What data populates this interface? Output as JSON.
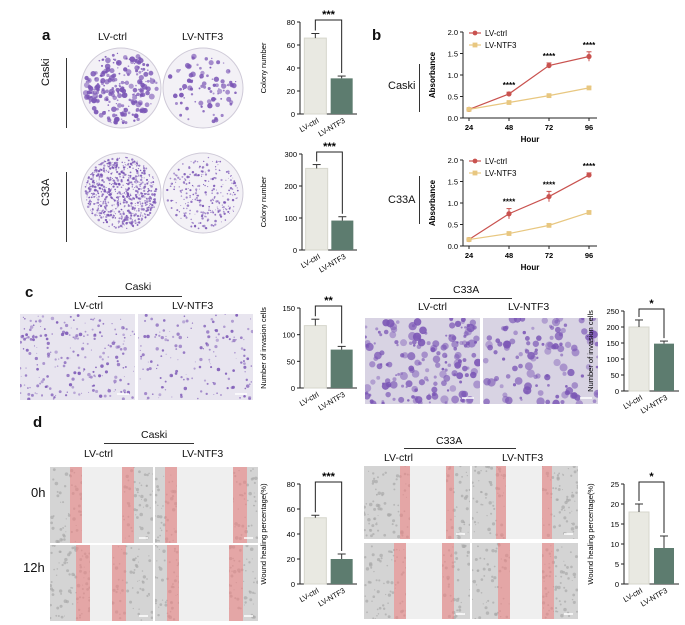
{
  "colors": {
    "ctrl_bar": "#e9e9e2",
    "ntf3_bar": "#5d7c6f",
    "ctrl_line": "#c9524f",
    "ntf3_line": "#e8c780",
    "crystal": "#7a55b5",
    "scratch": "#f07f7f"
  },
  "panels": {
    "a": "a",
    "b": "b",
    "c": "c",
    "d": "d"
  },
  "labels": {
    "lv_ctrl": "LV-ctrl",
    "lv_ntf3": "LV-NTF3",
    "caski": "Caski",
    "c33a": "C33A",
    "time_0h": "0h",
    "time_12h": "12h"
  },
  "chart_data": [
    {
      "id": "a-caski",
      "type": "bar",
      "categories": [
        "LV-ctrl",
        "LV-NTF3"
      ],
      "values": [
        66,
        31
      ],
      "errors": [
        4,
        2
      ],
      "ylabel": "Colony number",
      "ylim": [
        0,
        80
      ],
      "yticks": [
        0,
        20,
        40,
        60,
        80
      ],
      "significance": "***"
    },
    {
      "id": "a-c33a",
      "type": "bar",
      "categories": [
        "LV-ctrl",
        "LV-NTF3"
      ],
      "values": [
        255,
        92
      ],
      "errors": [
        12,
        12
      ],
      "ylabel": "Colony number",
      "ylim": [
        0,
        300
      ],
      "yticks": [
        0,
        100,
        200,
        300
      ],
      "significance": "***"
    },
    {
      "id": "b-caski",
      "type": "line",
      "x": [
        24,
        48,
        72,
        96
      ],
      "series": [
        {
          "name": "LV-ctrl",
          "values": [
            0.2,
            0.56,
            1.22,
            1.43
          ],
          "errors": [
            0.02,
            0.04,
            0.06,
            0.11
          ]
        },
        {
          "name": "LV-NTF3",
          "values": [
            0.2,
            0.36,
            0.52,
            0.7
          ],
          "errors": [
            0.01,
            0.02,
            0.03,
            0.03
          ]
        }
      ],
      "annotations": [
        "****",
        "****",
        "****"
      ],
      "xlabel": "Hour",
      "ylabel": "Absorbance",
      "ylim": [
        0,
        2.0
      ],
      "yticks": [
        0.0,
        0.5,
        1.0,
        1.5,
        2.0
      ]
    },
    {
      "id": "b-c33a",
      "type": "line",
      "x": [
        24,
        48,
        72,
        96
      ],
      "series": [
        {
          "name": "LV-ctrl",
          "values": [
            0.15,
            0.75,
            1.15,
            1.65
          ],
          "errors": [
            0.02,
            0.12,
            0.12,
            0.05
          ]
        },
        {
          "name": "LV-NTF3",
          "values": [
            0.15,
            0.29,
            0.48,
            0.78
          ],
          "errors": [
            0.01,
            0.03,
            0.04,
            0.03
          ]
        }
      ],
      "annotations": [
        "****",
        "****",
        "****"
      ],
      "xlabel": "Hour",
      "ylabel": "Absorbance",
      "ylim": [
        0,
        2.0
      ],
      "yticks": [
        0.0,
        0.5,
        1.0,
        1.5,
        2.0
      ]
    },
    {
      "id": "c-caski",
      "type": "bar",
      "categories": [
        "LV-ctrl",
        "LV-NTF3"
      ],
      "values": [
        117,
        72
      ],
      "errors": [
        12,
        6
      ],
      "ylabel": "Number of invasion cells",
      "ylim": [
        0,
        150
      ],
      "yticks": [
        0,
        50,
        100,
        150
      ],
      "significance": "**"
    },
    {
      "id": "c-c33a",
      "type": "bar",
      "categories": [
        "LV-ctrl",
        "LV-NTF3"
      ],
      "values": [
        200,
        148
      ],
      "errors": [
        22,
        8
      ],
      "ylabel": "Number of invasion cells",
      "ylim": [
        0,
        250
      ],
      "yticks": [
        0,
        50,
        100,
        150,
        200,
        250
      ],
      "significance": "*"
    },
    {
      "id": "d-caski",
      "type": "bar",
      "categories": [
        "LV-ctrl",
        "LV-NTF3"
      ],
      "values": [
        53,
        20
      ],
      "errors": [
        2,
        4
      ],
      "ylabel": "Wound healing percentage(%)",
      "ylim": [
        0,
        80
      ],
      "yticks": [
        0,
        20,
        40,
        60,
        80
      ],
      "significance": "***"
    },
    {
      "id": "d-c33a",
      "type": "bar",
      "categories": [
        "LV-ctrl",
        "LV-NTF3"
      ],
      "values": [
        18,
        9
      ],
      "errors": [
        2,
        3
      ],
      "ylabel": "Wound healing percentage(%)",
      "ylim": [
        0,
        25
      ],
      "yticks": [
        0,
        5,
        10,
        15,
        20,
        25
      ],
      "significance": "*"
    }
  ]
}
